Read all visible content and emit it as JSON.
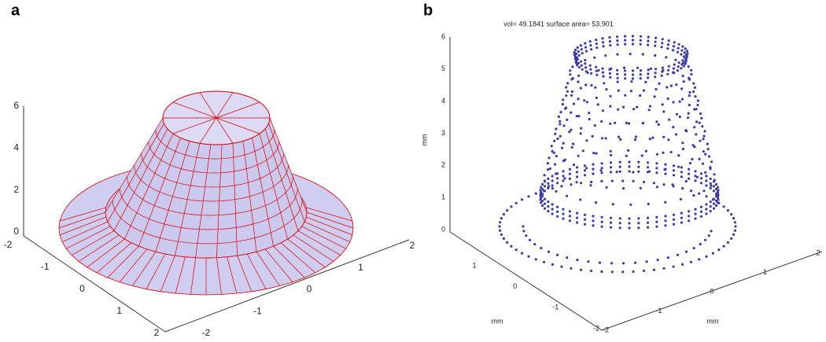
{
  "panels": [
    {
      "label": "a",
      "z_ticks": [
        "0",
        "2",
        "4",
        "6"
      ],
      "x_ticks": [
        "-2",
        "-1",
        "0",
        "1",
        "2"
      ],
      "y_ticks": [
        "-2",
        "-1",
        "0",
        "1",
        "2"
      ]
    },
    {
      "label": "b",
      "title": "vol= 49.1841 surface area= 53.901",
      "z_ticks": [
        "0",
        "1",
        "2",
        "3",
        "4",
        "5",
        "6"
      ],
      "z_label": "mm",
      "x_ticks": [
        "1",
        "0",
        "-1",
        "-2"
      ],
      "x_label": "mm",
      "y_ticks": [
        "-2",
        "-1",
        "0",
        "1",
        "2"
      ],
      "y_label": "mm"
    }
  ]
}
